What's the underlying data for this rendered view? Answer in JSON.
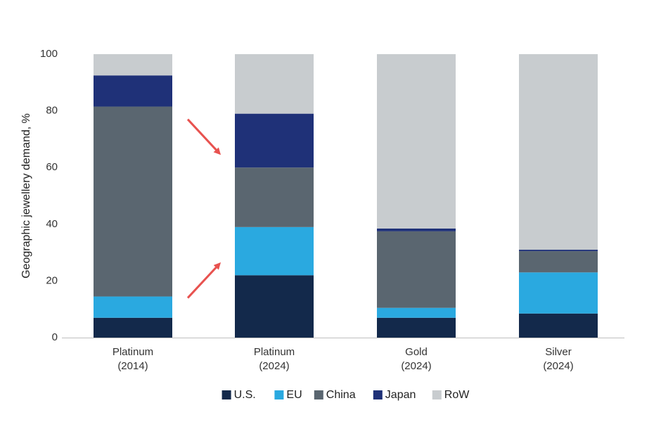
{
  "chart_data": {
    "type": "bar",
    "stacked": true,
    "categories": [
      [
        "Platinum",
        "(2014)"
      ],
      [
        "Platinum",
        "(2024)"
      ],
      [
        "Gold",
        "(2024)"
      ],
      [
        "Silver",
        "(2024)"
      ]
    ],
    "series": [
      {
        "name": "U.S.",
        "color": "#13294b",
        "values": [
          7,
          22,
          7,
          8.5
        ]
      },
      {
        "name": "EU",
        "color": "#2aa9e0",
        "values": [
          7.5,
          17,
          3.5,
          14.5
        ]
      },
      {
        "name": "China",
        "color": "#5a6670",
        "values": [
          67,
          21,
          27,
          7.5
        ]
      },
      {
        "name": "Japan",
        "color": "#1f3178",
        "values": [
          11,
          19,
          1,
          0.5
        ]
      },
      {
        "name": "RoW",
        "color": "#c8cccf",
        "values": [
          7.5,
          21,
          61.5,
          69
        ]
      }
    ],
    "ylabel": "Geographic jewellery demand, %",
    "ylim": [
      0,
      100
    ],
    "yticks": [
      0,
      20,
      40,
      60,
      80,
      100
    ],
    "grid": false,
    "legend": "bottom",
    "annotations": [
      {
        "type": "arrow",
        "color": "#e8524f",
        "direction": "down-right",
        "from_category": 0,
        "to_category": 1,
        "value_from": 77,
        "value_to": 65
      },
      {
        "type": "arrow",
        "color": "#e8524f",
        "direction": "up-right",
        "from_category": 0,
        "to_category": 1,
        "value_from": 14,
        "value_to": 26
      }
    ]
  }
}
